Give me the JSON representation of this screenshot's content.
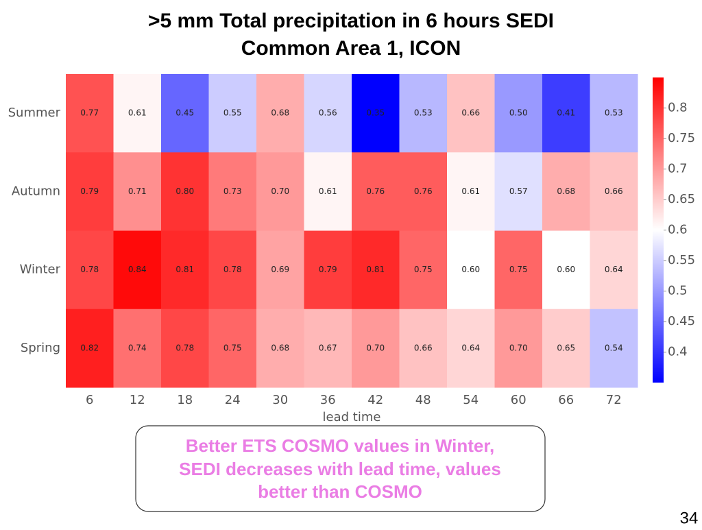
{
  "chart_data": {
    "type": "heatmap",
    "title": [
      ">5 mm Total precipitation in 6 hours SEDI",
      "Common Area 1, ICON"
    ],
    "x": [
      6,
      12,
      18,
      24,
      30,
      36,
      42,
      48,
      54,
      60,
      66,
      72
    ],
    "xlim": [
      3,
      75
    ],
    "xlabel": "lead time",
    "categories": [
      "Summer",
      "Autumn",
      "Winter",
      "Spring"
    ],
    "values": [
      [
        0.77,
        0.61,
        0.45,
        0.55,
        0.68,
        0.56,
        0.35,
        0.53,
        0.66,
        0.5,
        0.41,
        0.53
      ],
      [
        0.79,
        0.71,
        0.8,
        0.73,
        0.7,
        0.61,
        0.76,
        0.76,
        0.61,
        0.57,
        0.68,
        0.66
      ],
      [
        0.78,
        0.84,
        0.81,
        0.78,
        0.69,
        0.79,
        0.81,
        0.75,
        0.6,
        0.75,
        0.6,
        0.64
      ],
      [
        0.82,
        0.74,
        0.78,
        0.75,
        0.68,
        0.67,
        0.7,
        0.66,
        0.64,
        0.7,
        0.65,
        0.54
      ]
    ],
    "value_labels": [
      [
        "0.77",
        "0.61",
        "0.45",
        "0.55",
        "0.68",
        "0.56",
        "0.35",
        "0.53",
        "0.66",
        "0.50",
        "0.41",
        "0.53"
      ],
      [
        "0.79",
        "0.71",
        "0.80",
        "0.73",
        "0.70",
        "0.61",
        "0.76",
        "0.76",
        "0.61",
        "0.57",
        "0.68",
        "0.66"
      ],
      [
        "0.78",
        "0.84",
        "0.81",
        "0.78",
        "0.69",
        "0.79",
        "0.81",
        "0.75",
        "0.60",
        "0.75",
        "0.60",
        "0.64"
      ],
      [
        "0.82",
        "0.74",
        "0.78",
        "0.75",
        "0.68",
        "0.67",
        "0.70",
        "0.66",
        "0.64",
        "0.70",
        "0.65",
        "0.54"
      ]
    ],
    "colorscale": [
      "#0000ff",
      "#ffffff",
      "#ff0000"
    ],
    "zlim": [
      0.35,
      0.85
    ],
    "zticks": [
      0.4,
      0.45,
      0.5,
      0.55,
      0.6,
      0.65,
      0.7,
      0.75,
      0.8
    ]
  },
  "annotation": [
    "Better  ETS COSMO values in Winter,",
    "SEDI decreases with lead time, values",
    "better than COSMO"
  ],
  "page_number": 34
}
